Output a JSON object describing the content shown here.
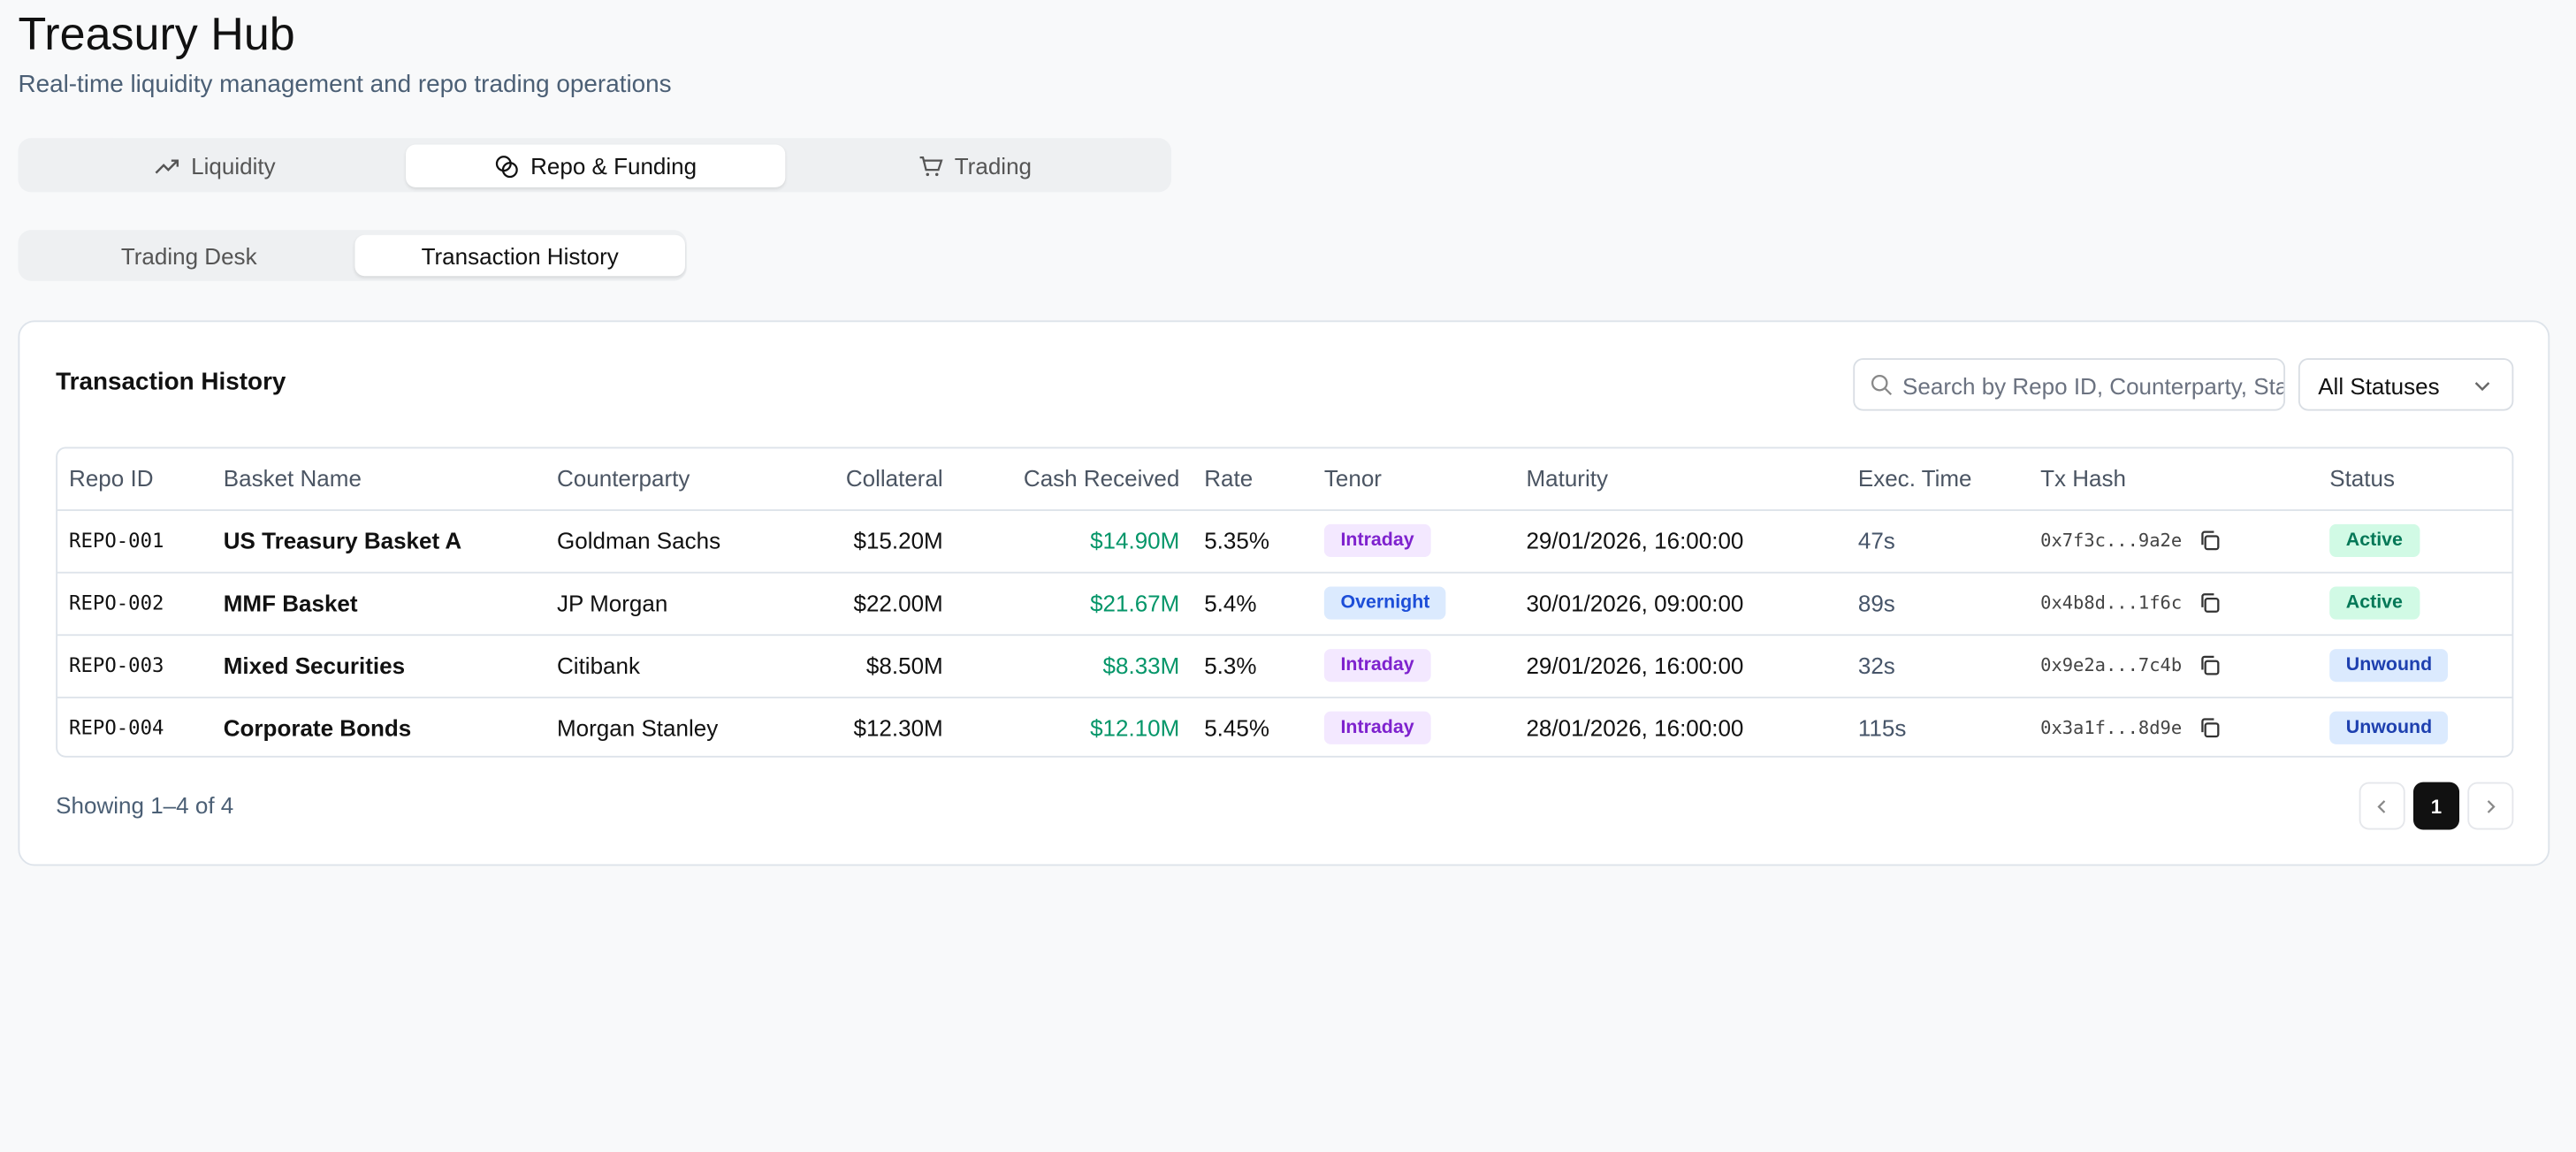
{
  "header": {
    "title": "Treasury Hub",
    "subtitle": "Real-time liquidity management and repo trading operations"
  },
  "tabs": [
    "Liquidity",
    "Repo & Funding",
    "Trading"
  ],
  "subtabs": [
    "Trading Desk",
    "Transaction History"
  ],
  "card": {
    "title": "Transaction History",
    "search_placeholder": "Search by Repo ID, Counterparty, Status...",
    "filter": "All Statuses",
    "table": {
      "columns": [
        "Repo ID",
        "Basket Name",
        "Counterparty",
        "Collateral",
        "Cash Received",
        "Rate",
        "Tenor",
        "Maturity",
        "Exec. Time",
        "Tx Hash",
        "Status"
      ],
      "rows": [
        [
          "REPO-001",
          "US Treasury Basket A",
          "Goldman Sachs",
          "$15.20M",
          "$14.90M",
          "5.35%",
          "Intraday",
          "29/01/2026, 16:00:00",
          "47s",
          "0x7f3c...9a2e",
          "Active"
        ],
        [
          "REPO-002",
          "MMF Basket",
          "JP Morgan",
          "$22.00M",
          "$21.67M",
          "5.4%",
          "Overnight",
          "30/01/2026, 09:00:00",
          "89s",
          "0x4b8d...1f6c",
          "Active"
        ],
        [
          "REPO-003",
          "Mixed Securities",
          "Citibank",
          "$8.50M",
          "$8.33M",
          "5.3%",
          "Intraday",
          "29/01/2026, 16:00:00",
          "32s",
          "0x9e2a...7c4b",
          "Unwound"
        ],
        [
          "REPO-004",
          "Corporate Bonds",
          "Morgan Stanley",
          "$12.30M",
          "$12.10M",
          "5.45%",
          "Intraday",
          "28/01/2026, 16:00:00",
          "115s",
          "0x3a1f...8d9e",
          "Unwound"
        ]
      ]
    },
    "badge_colors": {
      "Intraday": {
        "bg": "#f3e8ff",
        "fg": "#7e22ce"
      },
      "Overnight": {
        "bg": "#dbeafe",
        "fg": "#1d4ed8"
      },
      "Active": {
        "bg": "#d1fae5",
        "fg": "#047857"
      },
      "Unwound": {
        "bg": "#dbeafe",
        "fg": "#1e40af"
      }
    },
    "footer": "Showing 1–4 of 4",
    "page": "1"
  }
}
